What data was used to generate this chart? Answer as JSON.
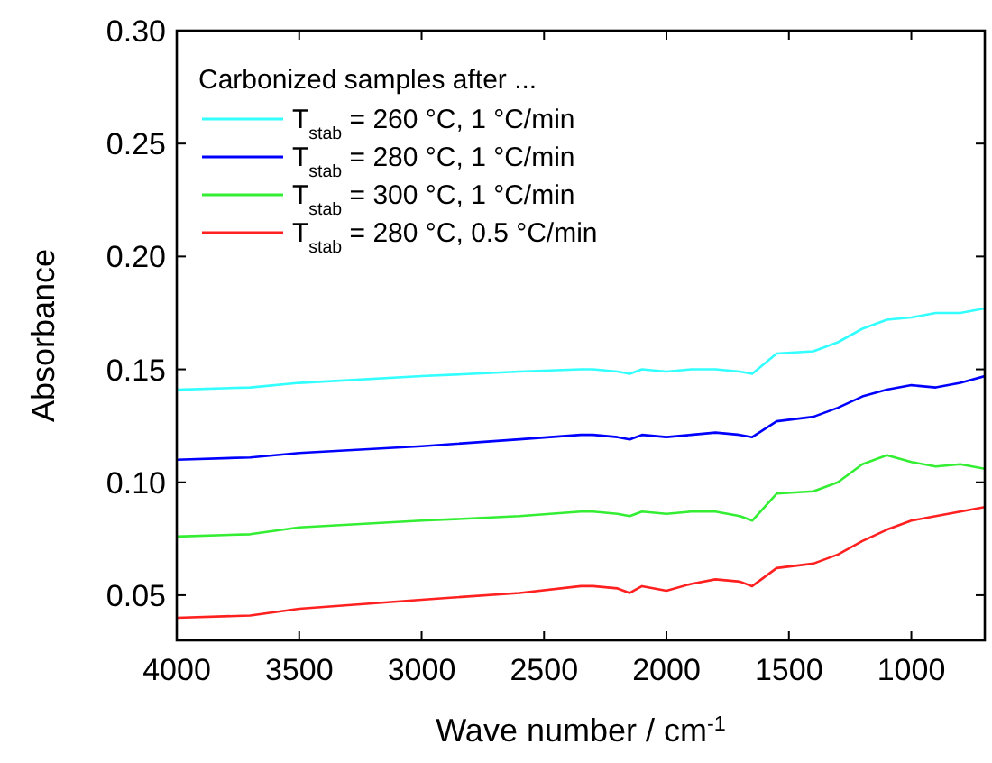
{
  "chart_data": {
    "type": "line",
    "xlabel": "Wave number / cm$^{-1}$",
    "ylabel": "Absorbance",
    "legend_title": "Carbonized samples after ...",
    "legend": "top left",
    "xlim": [
      4000,
      700
    ],
    "xticks": [
      4000,
      3500,
      3000,
      2500,
      2000,
      1500,
      1000
    ],
    "ylim": [
      0.03,
      0.3
    ],
    "yticks": [
      0.05,
      {
        "value": 0.1,
        "label": "0.10"
      },
      0.15,
      {
        "value": 0.2,
        "label": "0.20"
      },
      0.25,
      {
        "value": 0.3,
        "label": "0.30"
      }
    ],
    "x": [
      4000,
      3700,
      3500,
      3000,
      2600,
      2350,
      2300,
      2200,
      2150,
      2100,
      2000,
      1900,
      1800,
      1700,
      1650,
      1550,
      1400,
      1300,
      1200,
      1100,
      1000,
      900,
      800,
      700
    ],
    "series": [
      {
        "name": "T$_{stab}$ = 260 °C, 1 °C/min",
        "color": "#33ffff",
        "values": [
          0.141,
          0.142,
          0.144,
          0.147,
          0.149,
          0.15,
          0.15,
          0.149,
          0.148,
          0.15,
          0.149,
          0.15,
          0.15,
          0.149,
          0.148,
          0.157,
          0.158,
          0.162,
          0.168,
          0.172,
          0.173,
          0.175,
          0.175,
          0.177
        ]
      },
      {
        "name": "T$_{stab}$ = 280 °C, 1 °C/min",
        "color": "#0000ff",
        "values": [
          0.11,
          0.111,
          0.113,
          0.116,
          0.119,
          0.121,
          0.121,
          0.12,
          0.119,
          0.121,
          0.12,
          0.121,
          0.122,
          0.121,
          0.12,
          0.127,
          0.129,
          0.133,
          0.138,
          0.141,
          0.143,
          0.142,
          0.144,
          0.147
        ]
      },
      {
        "name": "T$_{stab}$ = 300 °C, 1 °C/min",
        "color": "#33ee33",
        "values": [
          0.076,
          0.077,
          0.08,
          0.083,
          0.085,
          0.087,
          0.087,
          0.086,
          0.085,
          0.087,
          0.086,
          0.087,
          0.087,
          0.085,
          0.083,
          0.095,
          0.096,
          0.1,
          0.108,
          0.112,
          0.109,
          0.107,
          0.108,
          0.106
        ]
      },
      {
        "name": "T$_{stab}$ = 280 °C, 0.5 °C/min",
        "color": "#ff2020",
        "values": [
          0.04,
          0.041,
          0.044,
          0.048,
          0.051,
          0.054,
          0.054,
          0.053,
          0.051,
          0.054,
          0.052,
          0.055,
          0.057,
          0.056,
          0.054,
          0.062,
          0.064,
          0.068,
          0.074,
          0.079,
          0.083,
          0.085,
          0.087,
          0.089
        ]
      }
    ]
  }
}
